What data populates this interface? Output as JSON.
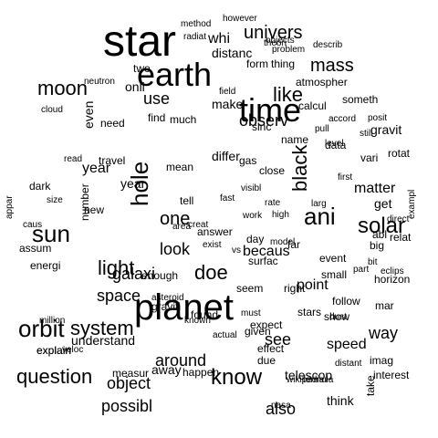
{
  "cloud": {
    "words": [
      {
        "t": "star"
      },
      {
        "t": "earth"
      },
      {
        "t": "planet"
      },
      {
        "t": "time"
      },
      {
        "t": "moon"
      },
      {
        "t": "sun"
      },
      {
        "t": "orbit"
      },
      {
        "t": "ani"
      },
      {
        "t": "like"
      },
      {
        "t": "mass"
      },
      {
        "t": "question"
      },
      {
        "t": "system"
      },
      {
        "t": "black"
      },
      {
        "t": "light"
      },
      {
        "t": "univers"
      },
      {
        "t": "know"
      },
      {
        "t": "hole"
      },
      {
        "t": "one"
      },
      {
        "t": "doe"
      },
      {
        "t": "solar"
      },
      {
        "t": "observ"
      },
      {
        "t": "look"
      },
      {
        "t": "space"
      },
      {
        "t": "galaxi"
      },
      {
        "t": "use"
      },
      {
        "t": "object"
      },
      {
        "t": "around"
      },
      {
        "t": "possibl"
      },
      {
        "t": "see"
      },
      {
        "t": "also"
      },
      {
        "t": "way"
      },
      {
        "t": "speed"
      },
      {
        "t": "point"
      },
      {
        "t": "matter"
      },
      {
        "t": "becaus"
      },
      {
        "t": "year"
      },
      {
        "t": "make"
      },
      {
        "t": "whi"
      },
      {
        "t": "distanc"
      },
      {
        "t": "understand"
      },
      {
        "t": "explain"
      },
      {
        "t": "telescop"
      },
      {
        "t": "think"
      },
      {
        "t": "get"
      },
      {
        "t": "form"
      },
      {
        "t": "thing"
      },
      {
        "t": "calcul"
      },
      {
        "t": "differ"
      },
      {
        "t": "mean"
      },
      {
        "t": "much"
      },
      {
        "t": "find"
      },
      {
        "t": "two"
      },
      {
        "t": "onli"
      },
      {
        "t": "need"
      },
      {
        "t": "even"
      },
      {
        "t": "read"
      },
      {
        "t": "new"
      },
      {
        "t": "size"
      },
      {
        "t": "away"
      },
      {
        "t": "answer"
      },
      {
        "t": "graviti"
      },
      {
        "t": "area"
      },
      {
        "t": "due"
      },
      {
        "t": "happen"
      },
      {
        "t": "measur"
      },
      {
        "t": "asteroid"
      },
      {
        "t": "energi"
      },
      {
        "t": "assum"
      },
      {
        "t": "caus"
      },
      {
        "t": "dark"
      },
      {
        "t": "seem"
      },
      {
        "t": "vari"
      },
      {
        "t": "rotat"
      },
      {
        "t": "abl"
      },
      {
        "t": "big"
      },
      {
        "t": "relat"
      },
      {
        "t": "horizon"
      },
      {
        "t": "explain"
      },
      {
        "t": "follow"
      },
      {
        "t": "imag"
      },
      {
        "t": "exampl"
      },
      {
        "t": "level"
      },
      {
        "t": "surfac"
      },
      {
        "t": "cloud"
      },
      {
        "t": "data"
      },
      {
        "t": "small"
      },
      {
        "t": "stars"
      },
      {
        "t": "model"
      },
      {
        "t": "enough"
      },
      {
        "t": "veloc"
      },
      {
        "t": "gravit"
      },
      {
        "t": "atmospher"
      },
      {
        "t": "problem"
      },
      {
        "t": "accord"
      },
      {
        "t": "posit"
      },
      {
        "t": "someth"
      },
      {
        "t": "still"
      },
      {
        "t": "interest"
      },
      {
        "t": "wikipedia"
      },
      {
        "t": "effect"
      },
      {
        "t": "given"
      },
      {
        "t": "visibl"
      },
      {
        "t": "day"
      },
      {
        "t": "eclips"
      },
      {
        "t": "vs"
      },
      {
        "t": "bit"
      },
      {
        "t": "field"
      },
      {
        "t": "gas"
      },
      {
        "t": "dust"
      },
      {
        "t": "name"
      },
      {
        "t": "show"
      },
      {
        "t": "mar"
      },
      {
        "t": "pull"
      },
      {
        "t": "part"
      },
      {
        "t": "event"
      },
      {
        "t": "actual"
      },
      {
        "t": "million"
      },
      {
        "t": "number"
      },
      {
        "t": "take"
      },
      {
        "t": "fast"
      },
      {
        "t": "travel"
      },
      {
        "t": "tell"
      },
      {
        "t": "far"
      },
      {
        "t": "high"
      },
      {
        "t": "first"
      },
      {
        "t": "found"
      },
      {
        "t": "known"
      },
      {
        "t": "right"
      },
      {
        "t": "direct"
      },
      {
        "t": "must"
      },
      {
        "t": "expect"
      },
      {
        "t": "rate"
      },
      {
        "t": "sinc"
      },
      {
        "t": "year"
      },
      {
        "t": "appar"
      },
      {
        "t": "close"
      },
      {
        "t": "radiat"
      },
      {
        "t": "method"
      },
      {
        "t": "however"
      },
      {
        "t": "theori"
      },
      {
        "t": "objects"
      },
      {
        "t": "describ"
      },
      {
        "t": "creat"
      },
      {
        "t": "neutron"
      },
      {
        "t": "nasa"
      },
      {
        "t": "formula"
      },
      {
        "t": "distant"
      },
      {
        "t": "work"
      },
      {
        "t": "exist"
      },
      {
        "t": "larg"
      }
    ]
  }
}
